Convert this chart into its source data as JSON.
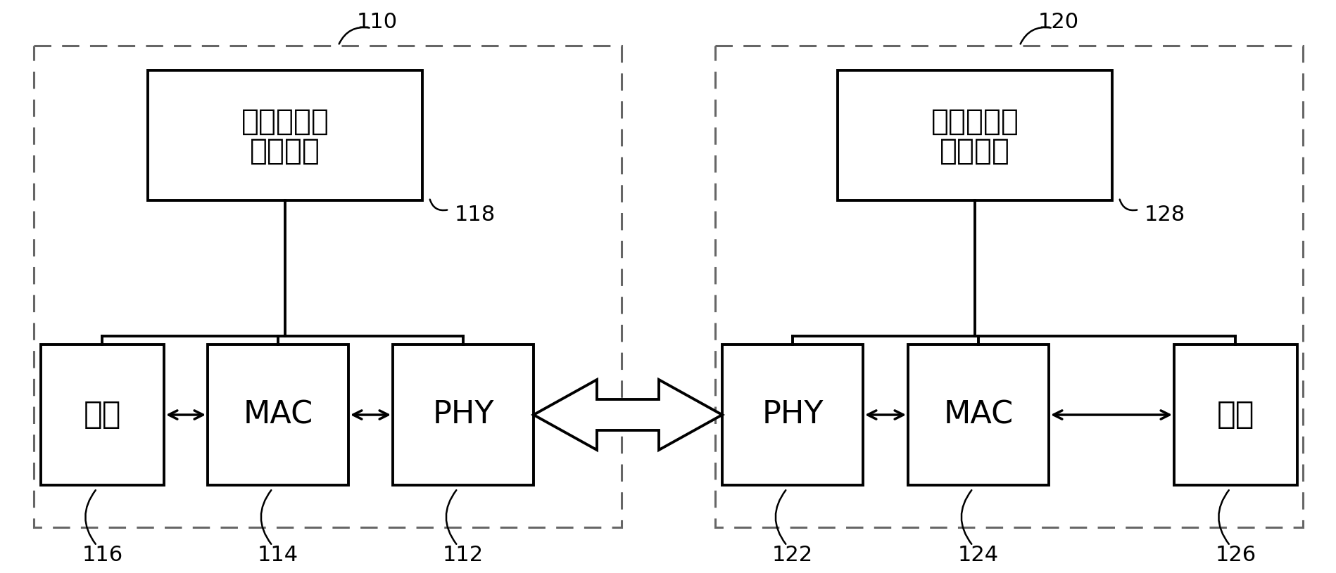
{
  "bg_color": "#ffffff",
  "line_color": "#000000",
  "box_fill": "#ffffff",
  "dashed_box_color": "#666666",
  "label_110": "110",
  "label_120": "120",
  "label_112": "112",
  "label_114": "114",
  "label_116": "116",
  "label_118": "118",
  "label_122": "122",
  "label_124": "124",
  "label_126": "126",
  "label_128": "128",
  "text_policy_line1": "能效以太网",
  "text_policy_line2": "控制略略",
  "text_mac": "MAC",
  "text_phy": "PHY",
  "text_host": "主机",
  "figsize": [
    18.99,
    8.15
  ],
  "dpi": 100
}
